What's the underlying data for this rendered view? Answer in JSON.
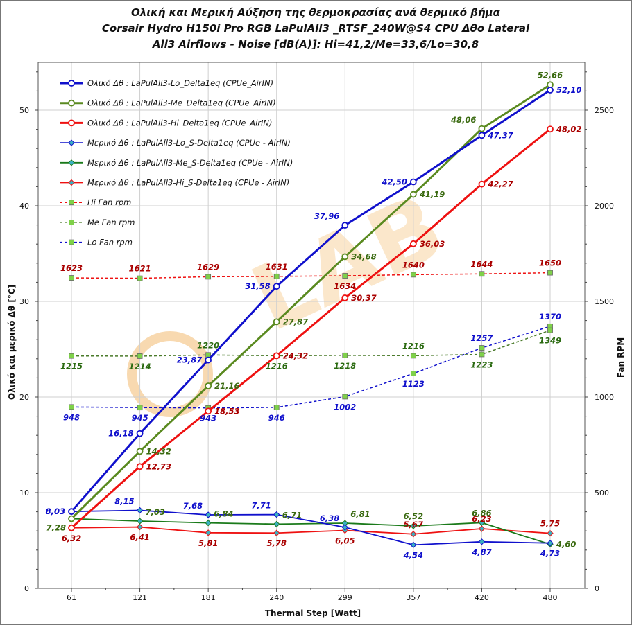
{
  "chart_data": {
    "type": "line",
    "title_lines": [
      "Ολική και Μερική Αύξηση της θερμοκρασίας ανά θερμικό βήμα",
      "Corsair Hydro H150i Pro RGB  LaPulAll3 _RTSF_240W@S4  CPU  Δθο Lateral",
      "All3  Airflows  -  Noise [dB(A)]: Hi=41,2/Me=33,6/Lo=30,8"
    ],
    "xlabel": "Thermal Step [Watt]",
    "ylabel": "Ολικό και μερικό  Δθ  [°C]",
    "y2label": "Fan RPM",
    "categories": [
      "61",
      "121",
      "181",
      "240",
      "299",
      "357",
      "420",
      "480"
    ],
    "ylim": [
      0,
      55
    ],
    "y_ticks": [
      0,
      10,
      20,
      30,
      40,
      50
    ],
    "y2lim": [
      0,
      2750
    ],
    "y2_ticks": [
      0,
      500,
      1000,
      1500,
      2000,
      2500
    ],
    "watermark": "LAB",
    "series": [
      {
        "name": "Ολικό Δθ : LaPulAll3-Lo_Delta1eq (CPUe_AirIN)",
        "axis": "left",
        "style": "thick",
        "marker": "circle",
        "color": "#1010cc",
        "label_color": "#1010cc",
        "values": [
          8.03,
          16.18,
          23.87,
          31.58,
          37.96,
          42.5,
          47.37,
          52.1
        ],
        "labels": [
          "8,03",
          "16,18",
          "23,87",
          "31,58",
          "37,96",
          "42,50",
          "47,37",
          "52,10"
        ],
        "label_pos": [
          "left",
          "left",
          "left",
          "left",
          "above-left",
          "left",
          "right",
          "right"
        ]
      },
      {
        "name": "Ολικό Δθ : LaPulAll3-Me_Delta1eq (CPUe_AirIN)",
        "axis": "left",
        "style": "thick",
        "marker": "circle",
        "color": "#5a8a20",
        "label_color": "#3a6a10",
        "values": [
          7.28,
          14.32,
          21.16,
          27.87,
          34.68,
          41.19,
          48.06,
          52.66
        ],
        "labels": [
          "7,28",
          "14,32",
          "21,16",
          "27,87",
          "34,68",
          "41,19",
          "48,06",
          "52,66"
        ],
        "label_pos": [
          "below-left",
          "right",
          "right",
          "right",
          "right",
          "right",
          "above-left",
          "above"
        ]
      },
      {
        "name": "Ολικό Δθ : LaPulAll3-Hi_Delta1eq (CPUe_AirIN)",
        "axis": "left",
        "style": "thick",
        "marker": "circle",
        "color": "#ee1111",
        "label_color": "#aa0000",
        "values": [
          6.32,
          12.73,
          18.53,
          24.32,
          30.37,
          36.03,
          42.27,
          48.02
        ],
        "labels": [
          "6,32",
          "12,73",
          "18,53",
          "24,32",
          "30,37",
          "36,03",
          "42,27",
          "48,02"
        ],
        "label_pos": [
          "below",
          "right",
          "right",
          "right",
          "right",
          "right",
          "right",
          "right"
        ]
      },
      {
        "name": "Μερικό Δθ : LaPulAll3-Lo_S-Delta1eq (CPUe - AirIN)",
        "axis": "left",
        "style": "thin",
        "marker": "diamond",
        "color": "#1010cc",
        "label_color": "#1010cc",
        "values": [
          8.03,
          8.15,
          7.68,
          7.71,
          6.38,
          4.54,
          4.87,
          4.73
        ],
        "labels": [
          "8,03",
          "8,15",
          "7,68",
          "7,71",
          "6,38",
          "4,54",
          "4,87",
          "4,73"
        ],
        "label_pos": [
          "left",
          "above-left",
          "above-left",
          "above-left",
          "above-left",
          "below",
          "below",
          "below"
        ]
      },
      {
        "name": "Μερικό Δθ : LaPulAll3-Me_S-Delta1eq (CPUe - AirIN)",
        "axis": "left",
        "style": "thin",
        "marker": "diamond",
        "color": "#1a7a1a",
        "label_color": "#3a6a10",
        "values": [
          7.28,
          7.03,
          6.84,
          6.71,
          6.81,
          6.52,
          6.86,
          4.6
        ],
        "labels": [
          "7,28",
          "7,03",
          "6,84",
          "6,71",
          "6,81",
          "6,52",
          "6,86",
          "4,60"
        ],
        "label_pos": [
          "below-left",
          "above-right",
          "above-right",
          "above-right",
          "above-right",
          "above",
          "above",
          "right"
        ]
      },
      {
        "name": "Μερικό Δθ : LaPulAll3-Hi_S-Delta1eq (CPUe - AirIN)",
        "axis": "left",
        "style": "thin",
        "marker": "diamond",
        "color": "#ee1111",
        "label_color": "#aa0000",
        "values": [
          6.32,
          6.41,
          5.81,
          5.78,
          6.05,
          5.67,
          6.23,
          5.75
        ],
        "labels": [
          "6,32",
          "6,41",
          "5,81",
          "5,78",
          "6,05",
          "5,67",
          "6,23",
          "5,75"
        ],
        "label_pos": [
          "below",
          "below",
          "below",
          "below",
          "below",
          "above",
          "above",
          "above"
        ]
      },
      {
        "name": "Hi Fan rpm",
        "axis": "right",
        "style": "dashed",
        "marker": "square",
        "color": "#ee1111",
        "label_color": "#aa0000",
        "values": [
          1623,
          1621,
          1629,
          1631,
          1634,
          1640,
          1644,
          1650
        ],
        "labels": [
          "1623",
          "1621",
          "1629",
          "1631",
          "1634",
          "1640",
          "1644",
          "1650"
        ],
        "label_pos": [
          "above",
          "above",
          "above",
          "above",
          "below",
          "above",
          "above",
          "above"
        ]
      },
      {
        "name": "Me Fan rpm",
        "axis": "right",
        "style": "dashed",
        "marker": "square",
        "color": "#4a7a2a",
        "label_color": "#2a6a10",
        "values": [
          1215,
          1214,
          1220,
          1216,
          1218,
          1216,
          1223,
          1349
        ],
        "labels": [
          "1215",
          "1214",
          "1220",
          "1216",
          "1218",
          "1216",
          "1223",
          "1349"
        ],
        "label_pos": [
          "below",
          "below",
          "above",
          "below",
          "below",
          "above",
          "below",
          "below"
        ]
      },
      {
        "name": "Lo Fan rpm",
        "axis": "right",
        "style": "dashed",
        "marker": "square",
        "color": "#1010cc",
        "label_color": "#1010cc",
        "values": [
          948,
          945,
          943,
          946,
          1002,
          1123,
          1257,
          1370
        ],
        "labels": [
          "948",
          "945",
          "943",
          "946",
          "1002",
          "1123",
          "1257",
          "1370"
        ],
        "label_pos": [
          "below",
          "below",
          "below",
          "below",
          "below",
          "below",
          "above",
          "above"
        ]
      }
    ]
  }
}
